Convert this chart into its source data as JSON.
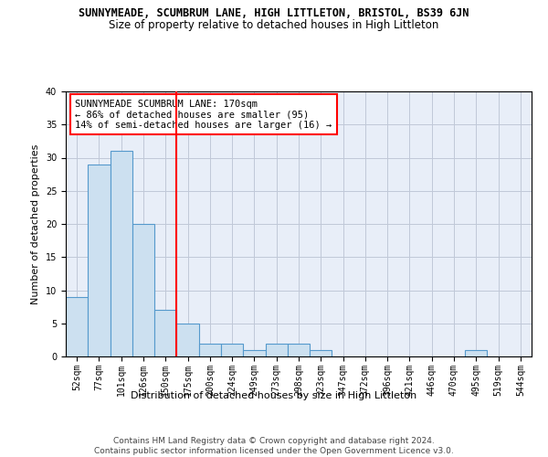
{
  "title_line1": "SUNNYMEADE, SCUMBRUM LANE, HIGH LITTLETON, BRISTOL, BS39 6JN",
  "title_line2": "Size of property relative to detached houses in High Littleton",
  "xlabel": "Distribution of detached houses by size in High Littleton",
  "ylabel": "Number of detached properties",
  "footnote": "Contains HM Land Registry data © Crown copyright and database right 2024.\nContains public sector information licensed under the Open Government Licence v3.0.",
  "bin_labels": [
    "52sqm",
    "77sqm",
    "101sqm",
    "126sqm",
    "150sqm",
    "175sqm",
    "200sqm",
    "224sqm",
    "249sqm",
    "273sqm",
    "298sqm",
    "323sqm",
    "347sqm",
    "372sqm",
    "396sqm",
    "421sqm",
    "446sqm",
    "470sqm",
    "495sqm",
    "519sqm",
    "544sqm"
  ],
  "bar_values": [
    9,
    29,
    31,
    20,
    7,
    5,
    2,
    2,
    1,
    2,
    2,
    1,
    0,
    0,
    0,
    0,
    0,
    0,
    1,
    0,
    0
  ],
  "bar_color": "#cce0f0",
  "bar_edge_color": "#5599cc",
  "property_line_x": 4.5,
  "annotation_text": "SUNNYMEADE SCUMBRUM LANE: 170sqm\n← 86% of detached houses are smaller (95)\n14% of semi-detached houses are larger (16) →",
  "annotation_box_color": "white",
  "annotation_box_edge_color": "red",
  "vline_color": "red",
  "ylim": [
    0,
    40
  ],
  "yticks": [
    0,
    5,
    10,
    15,
    20,
    25,
    30,
    35,
    40
  ],
  "grid_color": "#c0c8d8",
  "bg_color": "#e8eef8",
  "title1_fontsize": 8.5,
  "title2_fontsize": 8.5,
  "ylabel_fontsize": 8,
  "xlabel_fontsize": 8,
  "tick_fontsize": 7,
  "annot_fontsize": 7.5,
  "footnote_fontsize": 6.5
}
